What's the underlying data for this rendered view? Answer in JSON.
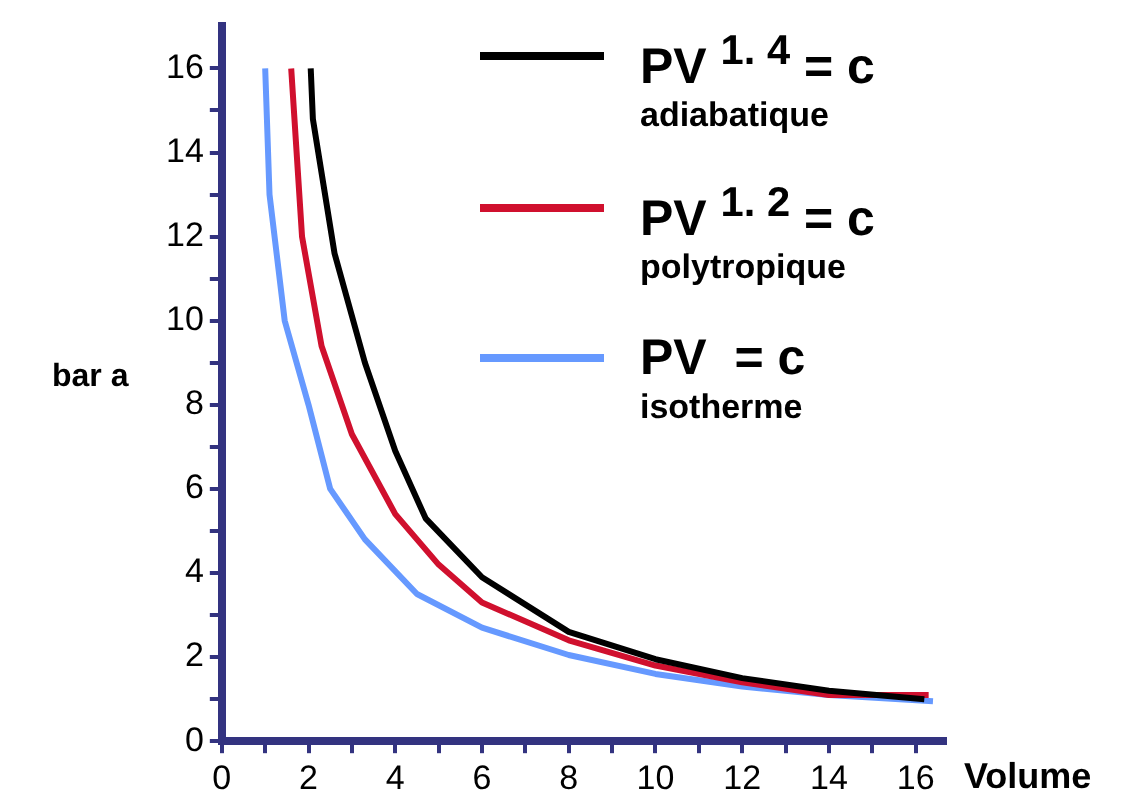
{
  "chart_data": {
    "type": "line",
    "xlabel": "Volume",
    "ylabel": "bar a",
    "xlim": [
      0,
      16.7
    ],
    "ylim": [
      0,
      17
    ],
    "xticks": [
      0,
      {
        "value": 1,
        "label": null
      },
      2,
      {
        "value": 3,
        "label": null
      },
      4,
      {
        "value": 5,
        "label": null
      },
      6,
      {
        "value": 7,
        "label": null
      },
      8,
      {
        "value": 9,
        "label": null
      },
      10,
      {
        "value": 11,
        "label": null
      },
      12,
      {
        "value": 13,
        "label": null
      },
      14,
      {
        "value": 15,
        "label": null
      },
      16
    ],
    "yticks": [
      0,
      {
        "value": 1,
        "label": null
      },
      2,
      {
        "value": 3,
        "label": null
      },
      4,
      {
        "value": 5,
        "label": null
      },
      6,
      {
        "value": 7,
        "label": null
      },
      8,
      {
        "value": 9,
        "label": null
      },
      10,
      {
        "value": 11,
        "label": null
      },
      12,
      {
        "value": 13,
        "label": null
      },
      14,
      {
        "value": 15,
        "label": null
      },
      16
    ],
    "grid": false,
    "legend": "top right",
    "marker": "none",
    "line_style": "solid",
    "series": [
      {
        "name": "PV $^{1. 4}$ = c\nadiabatique",
        "color": "#000000",
        "x": [
          2.05,
          2.1,
          2.6,
          3.3,
          4,
          4.7,
          6,
          8,
          10,
          12,
          14,
          16.2
        ],
        "values": [
          16,
          14.8,
          11.6,
          9,
          6.9,
          5.3,
          3.9,
          2.6,
          1.95,
          1.5,
          1.2,
          1.0
        ]
      },
      {
        "name": "PV $^{1. 2}$ = c\npolytropique",
        "color": "#d0102e",
        "x": [
          1.6,
          1.85,
          2.3,
          3,
          4,
          5,
          6,
          8,
          10,
          12,
          14,
          16.3
        ],
        "values": [
          16,
          12,
          9.4,
          7.3,
          5.4,
          4.2,
          3.3,
          2.4,
          1.8,
          1.4,
          1.1,
          1.1
        ]
      },
      {
        "name": "PV  = c\nisotherme",
        "color": "#6699ff",
        "x": [
          1.0,
          1.1,
          1.45,
          2,
          2.5,
          3.3,
          4.5,
          6,
          8,
          10,
          12,
          14,
          16.4
        ],
        "values": [
          16,
          13,
          10,
          8,
          6,
          4.8,
          3.5,
          2.7,
          2.05,
          1.6,
          1.3,
          1.1,
          0.95
        ]
      }
    ]
  }
}
